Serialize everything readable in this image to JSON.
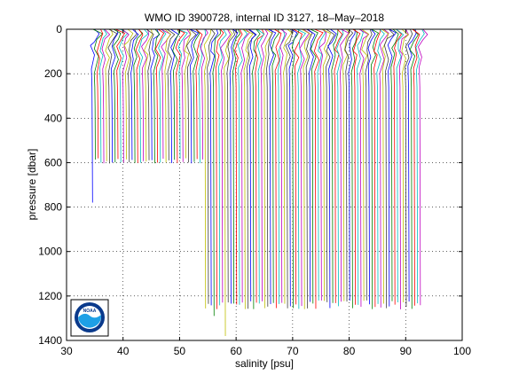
{
  "chart_data": {
    "type": "line",
    "title": "WMO ID 3900728, internal ID 3127, 18–May–2018",
    "xlabel": "salinity [psu]",
    "ylabel": "pressure [dbar]",
    "xlim": [
      30,
      100
    ],
    "ylim": [
      0,
      1400
    ],
    "y_reversed": true,
    "grid": true,
    "grid_style": "dotted",
    "xticks": [
      30,
      40,
      50,
      60,
      70,
      80,
      90,
      100
    ],
    "yticks": [
      0,
      200,
      400,
      600,
      800,
      1000,
      1200,
      1400
    ],
    "profile_offsets": {
      "description_free": true,
      "first_profile_x": 34.5,
      "last_profile_x": 92.5,
      "spacing": 0.5
    },
    "shallow_profiles": {
      "x_range": [
        34.5,
        54.0
      ],
      "max_pressure": 600
    },
    "deep_profiles": {
      "x_range": [
        54.5,
        92.5
      ],
      "max_pressure": 1240
    },
    "outliers": [
      {
        "x": 34.5,
        "max_pressure": 780
      },
      {
        "x": 58.0,
        "max_pressure": 1380
      },
      {
        "x": 56.0,
        "max_pressure": 1290
      }
    ],
    "series_colors": [
      "#0000ff",
      "#008000",
      "#ff0000",
      "#00bfbf",
      "#bf00bf",
      "#bfbf00",
      "#404040"
    ]
  },
  "logo": {
    "text": "NOAA",
    "colors": {
      "outer": "#0a3a8c",
      "inner": "#1ea0e6",
      "gull": "#ffffff"
    }
  }
}
